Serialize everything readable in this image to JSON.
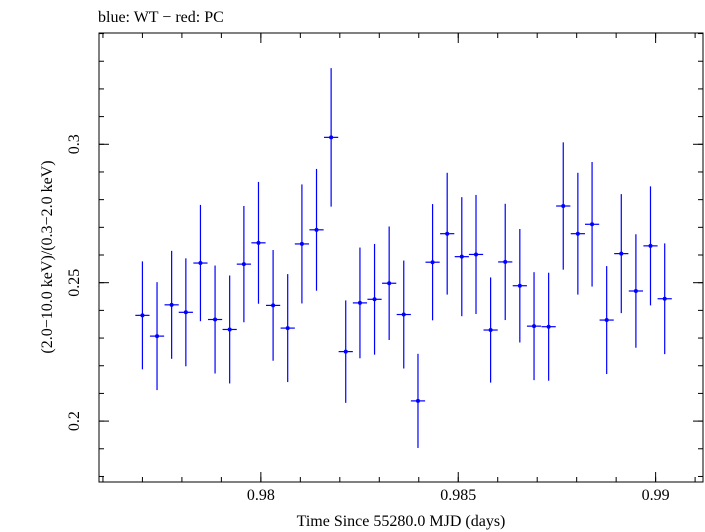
{
  "chart_data": {
    "type": "scatter",
    "title": "blue: WT − red: PC",
    "xlabel": "Time Since 55280.0 MJD (days)",
    "ylabel": "(2.0−10.0 keV)/(0.3−2.0 keV)",
    "xlim": [
      0.9759,
      0.9912
    ],
    "ylim": [
      0.178,
      0.3402
    ],
    "xticks": [
      {
        "value": 0.98,
        "label": "0.98"
      },
      {
        "value": 0.985,
        "label": "0.985"
      },
      {
        "value": 0.99,
        "label": "0.99"
      }
    ],
    "yticks": [
      {
        "value": 0.2,
        "label": "0.2"
      },
      {
        "value": 0.25,
        "label": "0.25"
      },
      {
        "value": 0.3,
        "label": "0.3"
      }
    ],
    "grid": false,
    "colors": {
      "WT": "#0000ff",
      "axis": "#000000"
    },
    "series": [
      {
        "name": "WT",
        "color": "#0000ff",
        "x_half_width": 0.00018,
        "points": [
          {
            "x": 0.977,
            "y": 0.2382,
            "err": 0.0195
          },
          {
            "x": 0.97737,
            "y": 0.2307,
            "err": 0.0195
          },
          {
            "x": 0.97774,
            "y": 0.242,
            "err": 0.0195
          },
          {
            "x": 0.9781,
            "y": 0.2393,
            "err": 0.0195
          },
          {
            "x": 0.97847,
            "y": 0.2571,
            "err": 0.021
          },
          {
            "x": 0.97884,
            "y": 0.2367,
            "err": 0.0195
          },
          {
            "x": 0.97921,
            "y": 0.2331,
            "err": 0.0195
          },
          {
            "x": 0.97957,
            "y": 0.2567,
            "err": 0.021
          },
          {
            "x": 0.97994,
            "y": 0.2644,
            "err": 0.022
          },
          {
            "x": 0.98031,
            "y": 0.2418,
            "err": 0.02
          },
          {
            "x": 0.98068,
            "y": 0.2336,
            "err": 0.0195
          },
          {
            "x": 0.98104,
            "y": 0.264,
            "err": 0.0215
          },
          {
            "x": 0.98141,
            "y": 0.2691,
            "err": 0.022
          },
          {
            "x": 0.98178,
            "y": 0.3025,
            "err": 0.025
          },
          {
            "x": 0.98215,
            "y": 0.2251,
            "err": 0.0185
          },
          {
            "x": 0.98251,
            "y": 0.2427,
            "err": 0.02
          },
          {
            "x": 0.98288,
            "y": 0.244,
            "err": 0.02
          },
          {
            "x": 0.98325,
            "y": 0.2498,
            "err": 0.0205
          },
          {
            "x": 0.98362,
            "y": 0.2385,
            "err": 0.0195
          },
          {
            "x": 0.98398,
            "y": 0.2073,
            "err": 0.017
          },
          {
            "x": 0.98435,
            "y": 0.2574,
            "err": 0.021
          },
          {
            "x": 0.98472,
            "y": 0.2677,
            "err": 0.022
          },
          {
            "x": 0.98509,
            "y": 0.2594,
            "err": 0.0215
          },
          {
            "x": 0.98545,
            "y": 0.2602,
            "err": 0.0215
          },
          {
            "x": 0.98582,
            "y": 0.2329,
            "err": 0.019
          },
          {
            "x": 0.98619,
            "y": 0.2575,
            "err": 0.021
          },
          {
            "x": 0.98656,
            "y": 0.2489,
            "err": 0.0205
          },
          {
            "x": 0.98692,
            "y": 0.2343,
            "err": 0.0195
          },
          {
            "x": 0.98729,
            "y": 0.2341,
            "err": 0.0195
          },
          {
            "x": 0.98766,
            "y": 0.2777,
            "err": 0.023
          },
          {
            "x": 0.98803,
            "y": 0.2677,
            "err": 0.022
          },
          {
            "x": 0.98839,
            "y": 0.2711,
            "err": 0.0225
          },
          {
            "x": 0.98876,
            "y": 0.2365,
            "err": 0.0195
          },
          {
            "x": 0.98913,
            "y": 0.2605,
            "err": 0.0215
          },
          {
            "x": 0.9895,
            "y": 0.247,
            "err": 0.0205
          },
          {
            "x": 0.98987,
            "y": 0.2633,
            "err": 0.0215
          },
          {
            "x": 0.99023,
            "y": 0.2442,
            "err": 0.02
          }
        ]
      }
    ]
  }
}
